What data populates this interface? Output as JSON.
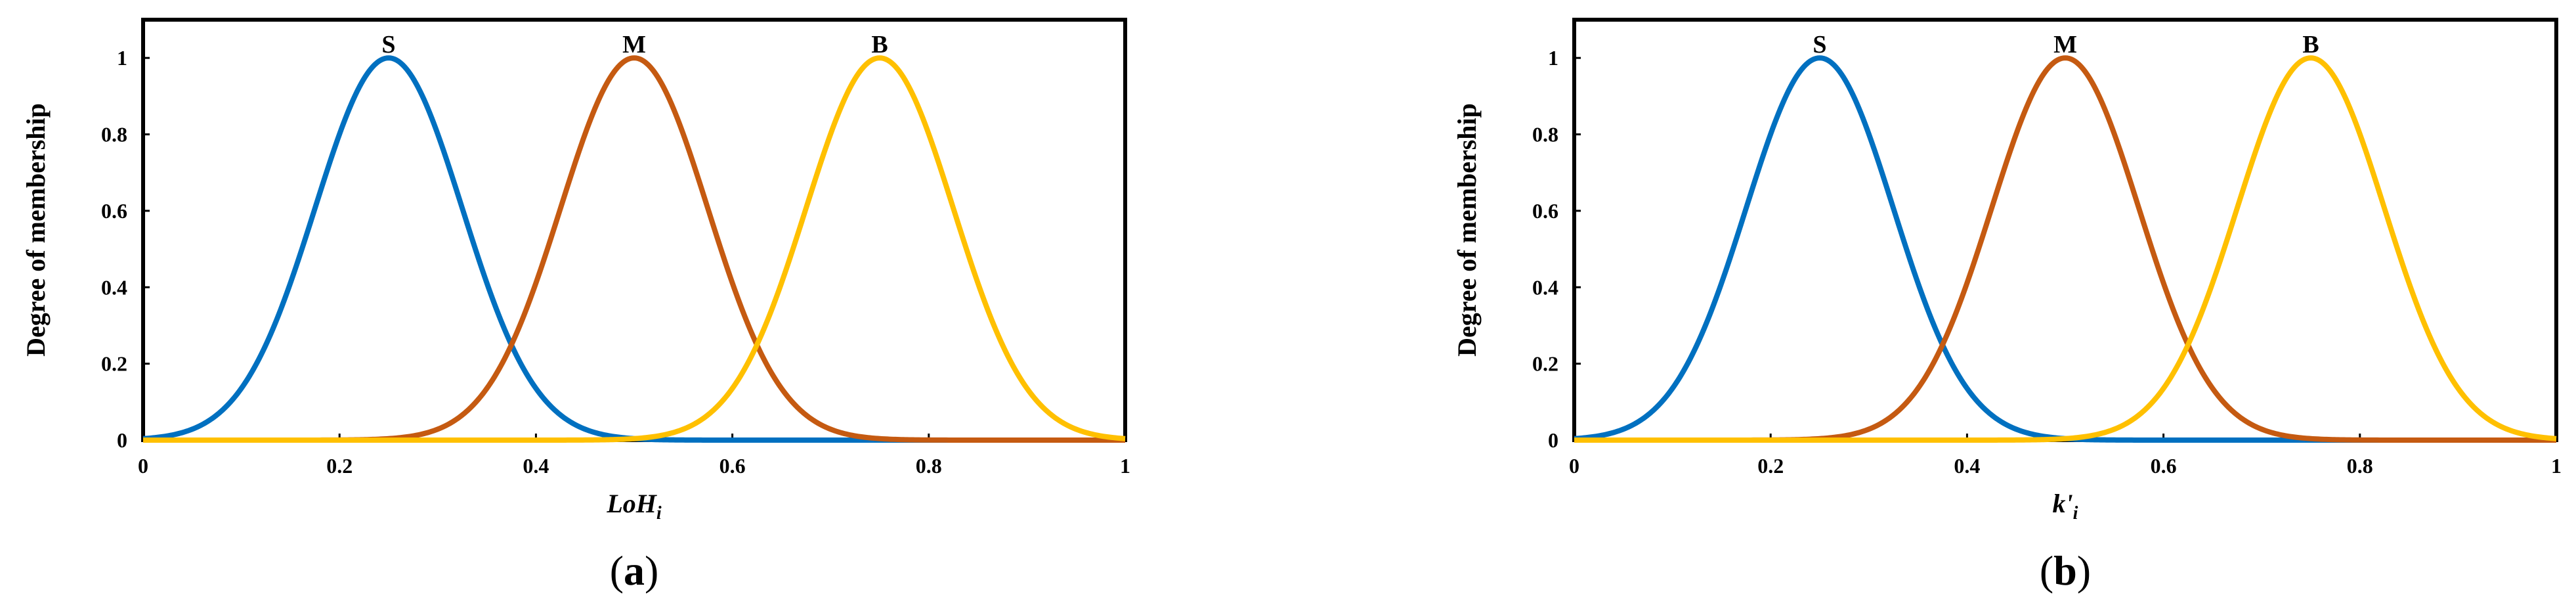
{
  "chart_data": [
    {
      "type": "line",
      "panel": "a",
      "xlabel_main": "LoH",
      "xlabel_sub": "i",
      "ylabel": "Degree of membership",
      "xlim": [
        0,
        1
      ],
      "ylim": [
        0,
        1.1
      ],
      "x_ticks": [
        "0",
        "0.2",
        "0.4",
        "0.6",
        "0.8",
        "1"
      ],
      "y_ticks": [
        "0",
        "0.2",
        "0.4",
        "0.6",
        "0.8",
        "1"
      ],
      "grid": false,
      "series": [
        {
          "name": "S",
          "function": "gaussian",
          "center": 0.25,
          "sigma": 0.075,
          "color": "#0070C0"
        },
        {
          "name": "M",
          "function": "gaussian",
          "center": 0.5,
          "sigma": 0.075,
          "color": "#C55A11"
        },
        {
          "name": "B",
          "function": "gaussian",
          "center": 0.75,
          "sigma": 0.075,
          "color": "#FFC000"
        }
      ],
      "caption": {
        "open": "(",
        "letter": "a",
        "close": ")"
      }
    },
    {
      "type": "line",
      "panel": "b",
      "xlabel_main": "k'",
      "xlabel_sub": "i",
      "ylabel": "Degree of membership",
      "xlim": [
        0,
        1
      ],
      "ylim": [
        0,
        1.1
      ],
      "x_ticks": [
        "0",
        "0.2",
        "0.4",
        "0.6",
        "0.8",
        "1"
      ],
      "y_ticks": [
        "0",
        "0.2",
        "0.4",
        "0.6",
        "0.8",
        "1"
      ],
      "grid": false,
      "series": [
        {
          "name": "S",
          "function": "gaussian",
          "center": 0.25,
          "sigma": 0.075,
          "color": "#0070C0"
        },
        {
          "name": "M",
          "function": "gaussian",
          "center": 0.5,
          "sigma": 0.075,
          "color": "#C55A11"
        },
        {
          "name": "B",
          "function": "gaussian",
          "center": 0.75,
          "sigma": 0.075,
          "color": "#FFC000"
        }
      ],
      "caption": {
        "open": "(",
        "letter": "b",
        "close": ")"
      }
    }
  ]
}
